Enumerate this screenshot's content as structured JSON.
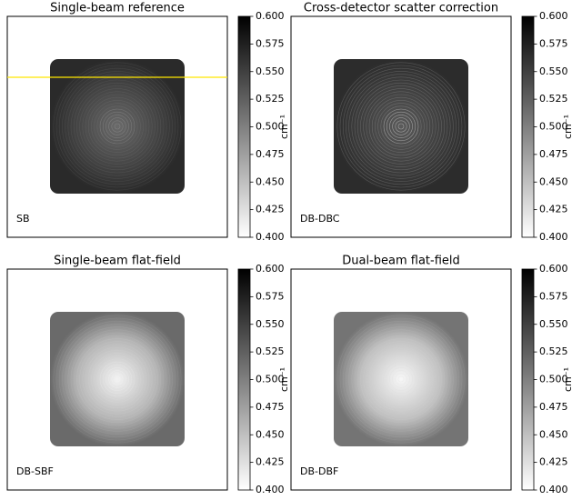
{
  "chart_data": [
    {
      "type": "image",
      "title": "Single-beam reference",
      "label": "SB",
      "colorbar_label": "cm⁻¹",
      "ylim": [
        0.4,
        0.6
      ],
      "yticks": [
        {
          "value": 0.4,
          "label": "0.400"
        },
        {
          "value": 0.425,
          "label": "0.425"
        },
        {
          "value": 0.45,
          "label": "0.450"
        },
        {
          "value": 0.475,
          "label": "0.475"
        },
        {
          "value": 0.5,
          "label": "0.500"
        },
        {
          "value": 0.525,
          "label": "0.525"
        },
        {
          "value": 0.55,
          "label": "0.550"
        },
        {
          "value": 0.575,
          "label": "0.575"
        },
        {
          "value": 0.6,
          "label": "0.600"
        }
      ]
    },
    {
      "type": "image",
      "title": "Cross-detector scatter correction",
      "label": "DB-DBC",
      "colorbar_label": "cm⁻¹",
      "ylim": [
        0.4,
        0.6
      ],
      "yticks": [
        {
          "value": 0.4,
          "label": "0.400"
        },
        {
          "value": 0.425,
          "label": "0.425"
        },
        {
          "value": 0.45,
          "label": "0.450"
        },
        {
          "value": 0.475,
          "label": "0.475"
        },
        {
          "value": 0.5,
          "label": "0.500"
        },
        {
          "value": 0.525,
          "label": "0.525"
        },
        {
          "value": 0.55,
          "label": "0.550"
        },
        {
          "value": 0.575,
          "label": "0.575"
        },
        {
          "value": 0.6,
          "label": "0.600"
        }
      ]
    },
    {
      "type": "image",
      "title": "Single-beam flat-field",
      "label": "DB-SBF",
      "colorbar_label": "cm⁻¹",
      "ylim": [
        0.4,
        0.6
      ],
      "yticks": [
        {
          "value": 0.4,
          "label": "0.400"
        },
        {
          "value": 0.425,
          "label": "0.425"
        },
        {
          "value": 0.45,
          "label": "0.450"
        },
        {
          "value": 0.475,
          "label": "0.475"
        },
        {
          "value": 0.5,
          "label": "0.500"
        },
        {
          "value": 0.525,
          "label": "0.525"
        },
        {
          "value": 0.55,
          "label": "0.550"
        },
        {
          "value": 0.575,
          "label": "0.575"
        },
        {
          "value": 0.6,
          "label": "0.600"
        }
      ]
    },
    {
      "type": "image",
      "title": "Dual-beam flat-field",
      "label": "DB-DBF",
      "colorbar_label": "cm⁻¹",
      "ylim": [
        0.4,
        0.6
      ],
      "yticks": [
        {
          "value": 0.4,
          "label": "0.400"
        },
        {
          "value": 0.425,
          "label": "0.425"
        },
        {
          "value": 0.45,
          "label": "0.450"
        },
        {
          "value": 0.475,
          "label": "0.475"
        },
        {
          "value": 0.5,
          "label": "0.500"
        },
        {
          "value": 0.525,
          "label": "0.525"
        },
        {
          "value": 0.55,
          "label": "0.550"
        },
        {
          "value": 0.575,
          "label": "0.575"
        },
        {
          "value": 0.6,
          "label": "0.600"
        }
      ]
    }
  ]
}
